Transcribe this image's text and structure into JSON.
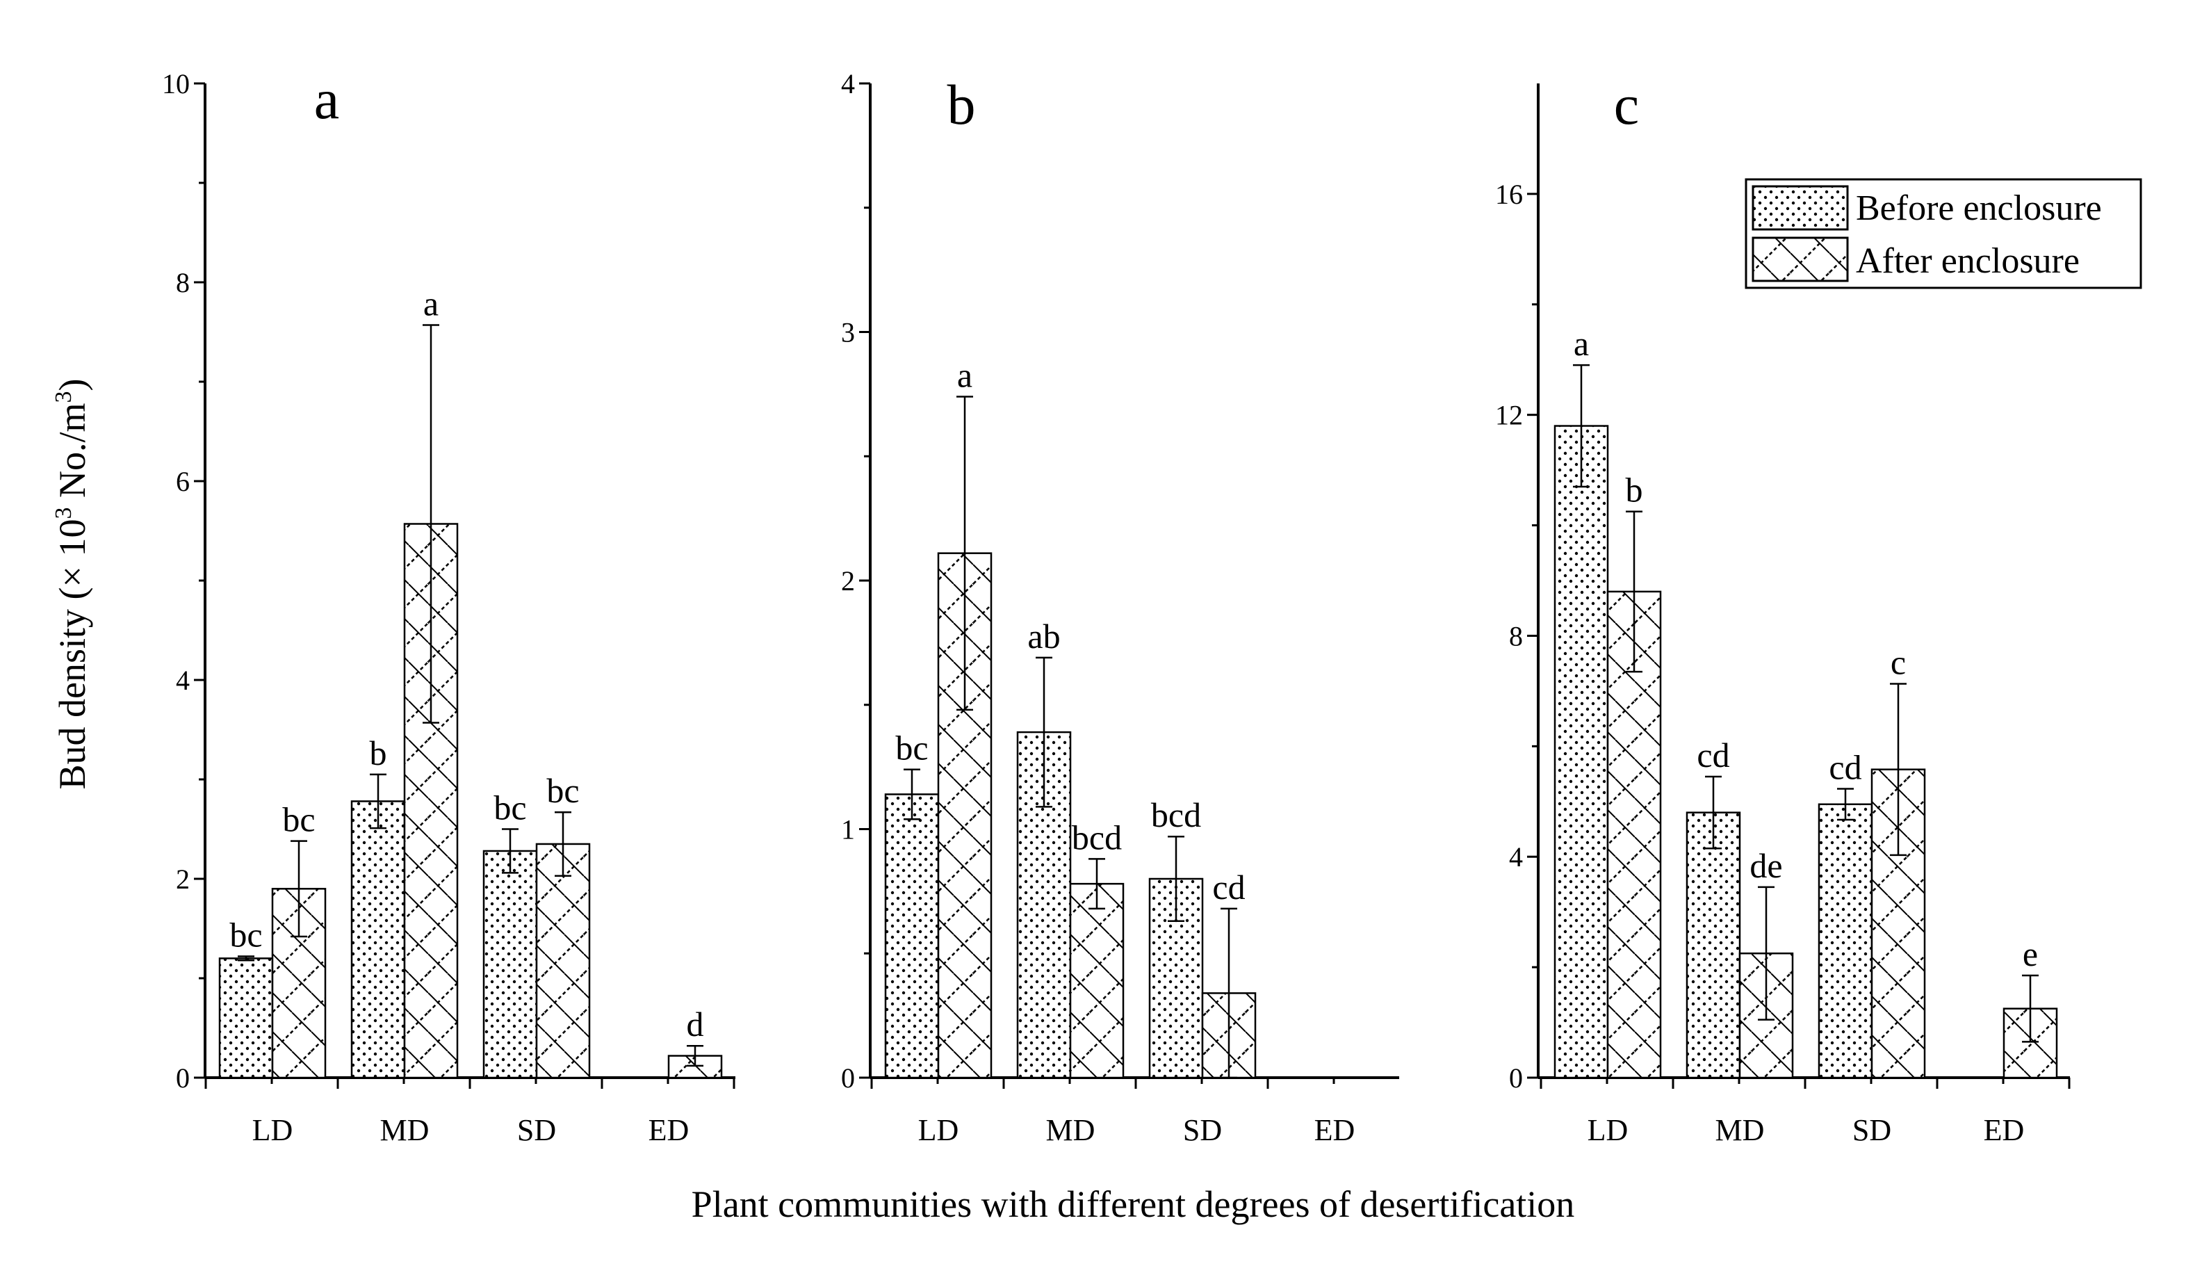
{
  "figure": {
    "x_title": "Plant communities with different degrees of desertification",
    "y_title_parts": [
      "Bud density (× 10",
      "3",
      " No./m",
      "3",
      ")"
    ],
    "legend": [
      "Before enclosure",
      "After enclosure"
    ]
  },
  "colors": {
    "ink": "#000000",
    "background": "#ffffff"
  },
  "chart_data": [
    {
      "type": "bar",
      "panel": "a",
      "categories": [
        "LD",
        "MD",
        "SD",
        "ED"
      ],
      "ylim": [
        0,
        10
      ],
      "yticks": [
        "0",
        "2",
        "4",
        "6",
        "8",
        "10"
      ],
      "series": [
        {
          "name": "Before enclosure",
          "values": [
            1.2,
            2.78,
            2.28,
            0
          ],
          "errors": [
            0.02,
            0.27,
            0.22,
            0
          ],
          "letters": [
            "bc",
            "b",
            "bc",
            ""
          ]
        },
        {
          "name": "After enclosure",
          "values": [
            1.9,
            5.57,
            2.35,
            0.22
          ],
          "errors": [
            0.48,
            2.0,
            0.32,
            0.1
          ],
          "letters": [
            "bc",
            "a",
            "bc",
            "d"
          ]
        }
      ]
    },
    {
      "type": "bar",
      "panel": "b",
      "categories": [
        "LD",
        "MD",
        "SD",
        "ED"
      ],
      "ylim": [
        0,
        4
      ],
      "yticks": [
        "0",
        "1",
        "2",
        "3",
        "4"
      ],
      "series": [
        {
          "name": "Before enclosure",
          "values": [
            1.14,
            1.39,
            0.8,
            0
          ],
          "errors": [
            0.1,
            0.3,
            0.17,
            0
          ],
          "letters": [
            "bc",
            "ab",
            "bcd",
            ""
          ]
        },
        {
          "name": "After enclosure",
          "values": [
            2.11,
            0.78,
            0.34,
            0
          ],
          "errors": [
            0.63,
            0.1,
            0.34,
            0
          ],
          "letters": [
            "a",
            "bcd",
            "cd",
            ""
          ]
        }
      ]
    },
    {
      "type": "bar",
      "panel": "c",
      "categories": [
        "LD",
        "MD",
        "SD",
        "ED"
      ],
      "ylim": [
        0,
        18
      ],
      "yticks": [
        "0",
        "4",
        "8",
        "12",
        "16"
      ],
      "series": [
        {
          "name": "Before enclosure",
          "values": [
            11.8,
            4.8,
            4.95,
            0
          ],
          "errors": [
            1.1,
            0.65,
            0.28,
            0
          ],
          "letters": [
            "a",
            "cd",
            "cd",
            ""
          ]
        },
        {
          "name": "After enclosure",
          "values": [
            8.8,
            2.25,
            5.58,
            1.25
          ],
          "errors": [
            1.45,
            1.2,
            1.55,
            0.6
          ],
          "letters": [
            "b",
            "de",
            "c",
            "e"
          ]
        }
      ]
    }
  ]
}
